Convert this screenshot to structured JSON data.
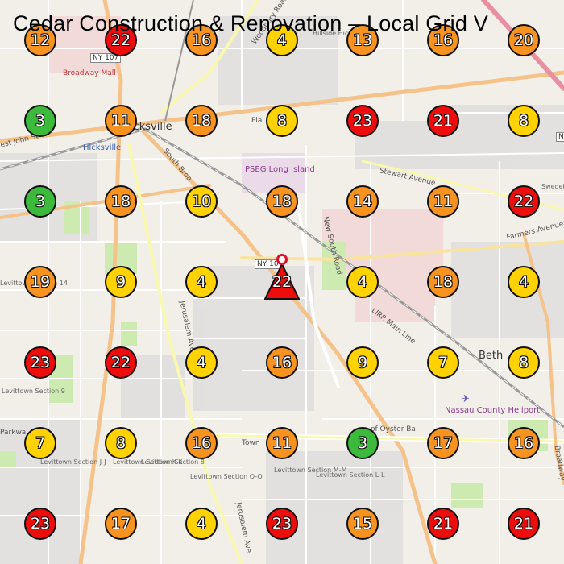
{
  "title": "Cedar Construction & Renovation – Local Grid V",
  "center_marker": {
    "value": "22",
    "color": "#ee0d0d"
  },
  "grid_values": [
    [
      "12",
      "22",
      "16",
      "4",
      "13",
      "16",
      "20"
    ],
    [
      "3",
      "11",
      "18",
      "8",
      "23",
      "21",
      "8"
    ],
    [
      "3",
      "18",
      "10",
      "18",
      "14",
      "11",
      "22"
    ],
    [
      "19",
      "9",
      "4",
      "",
      "4",
      "18",
      "4"
    ],
    [
      "23",
      "22",
      "4",
      "16",
      "9",
      "7",
      "8"
    ],
    [
      "7",
      "8",
      "16",
      "11",
      "3",
      "17",
      "16"
    ],
    [
      "23",
      "17",
      "4",
      "23",
      "15",
      "21",
      "21"
    ]
  ],
  "grid_colors": [
    [
      "orange",
      "red",
      "orange",
      "yellow",
      "orange",
      "orange",
      "orange"
    ],
    [
      "green",
      "orange",
      "orange",
      "yellow",
      "red",
      "red",
      "yellow"
    ],
    [
      "green",
      "orange",
      "yellow",
      "orange",
      "orange",
      "orange",
      "red"
    ],
    [
      "orange",
      "yellow",
      "yellow",
      "",
      "yellow",
      "orange",
      "yellow"
    ],
    [
      "red",
      "red",
      "yellow",
      "orange",
      "yellow",
      "yellow",
      "yellow"
    ],
    [
      "yellow",
      "yellow",
      "orange",
      "orange",
      "green",
      "orange",
      "orange"
    ],
    [
      "red",
      "orange",
      "yellow",
      "red",
      "orange",
      "red",
      "red"
    ]
  ],
  "map_labels": {
    "hicksville_town": "icksville",
    "hicksville_station": "Hicksville",
    "broadway_mall": "Broadway Mall",
    "pseg": "PSEG Long Island",
    "new_south_road": "New South Road",
    "south_broadway": "South Broa",
    "stewart_ave": "Stewart Avenue",
    "farmers_ave": "Farmers Avenue",
    "jerusalem_ave": "Jerusalem Ave",
    "jerusalem_ave2": "Jerusalem Ave",
    "lirr": "LIRR Main Line",
    "beth": "Beth",
    "nassau_heliport": "Nassau County Heliport",
    "levittown_sec_9": "Levittown Section 9",
    "levittown_sec_jj": "Levittown Section J-J",
    "levittown_sec_kk": "Levittown Section K-K",
    "levittown_sec_8": "Levittown Section 8",
    "levittown_sec_oo": "Levittown Section O-O",
    "levittown_sec_mm": "Levittown Section M-M",
    "levittown_sec_ll": "Levittown Section L-L",
    "levittown_sec_14": "Levittown Section 14",
    "west_john": "est John St",
    "parkway": "Parkwa",
    "plain": "Pla",
    "hillside": "Hillside Hicksville",
    "wantagh": "Woodbury Road",
    "town_rd": "Town",
    "oyster_bay": "of Oyster Ba",
    "swedeto": "Swedeto Villag",
    "broadway": "Broadway",
    "ny107": "NY 107",
    "ny106": "NY 10",
    "ny_n": "N"
  }
}
